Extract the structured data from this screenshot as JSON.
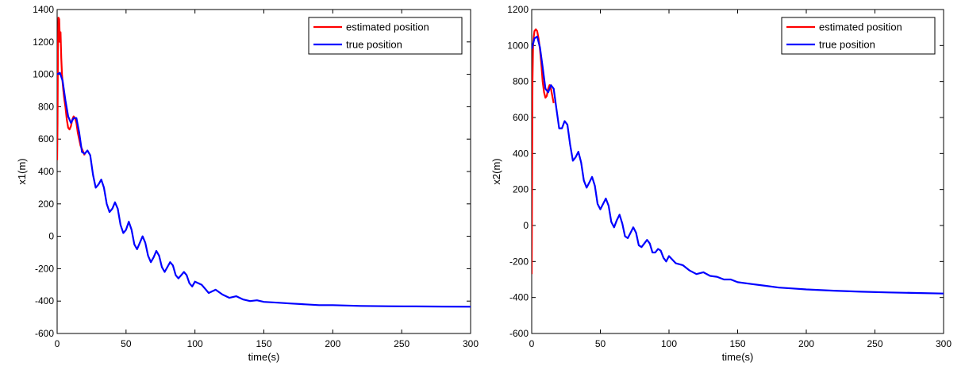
{
  "chart_data": [
    {
      "type": "line",
      "xlabel": "time(s)",
      "ylabel": "x1(m)",
      "xlim": [
        0,
        300
      ],
      "ylim": [
        -600,
        1400
      ],
      "xticks": [
        "0",
        "50",
        "100",
        "150",
        "200",
        "250",
        "300"
      ],
      "yticks": [
        "-600",
        "-400",
        "-200",
        "0",
        "200",
        "400",
        "600",
        "800",
        "1000",
        "1200",
        "1400"
      ],
      "grid": false,
      "legend": "top-right",
      "series": [
        {
          "name": "estimated position",
          "color": "#ff0000",
          "x": [
            0,
            0.3,
            0.6,
            1,
            1.5,
            2,
            2.5,
            3,
            3.5,
            4,
            4.5,
            5,
            6,
            7,
            8,
            9,
            10,
            11,
            12,
            13,
            14,
            15,
            17,
            20
          ],
          "y": [
            470,
            700,
            1150,
            1350,
            1340,
            1200,
            1260,
            1100,
            1000,
            950,
            900,
            860,
            800,
            720,
            670,
            660,
            680,
            720,
            740,
            730,
            700,
            640,
            560,
            500
          ]
        },
        {
          "name": "true position",
          "color": "#0000ff",
          "x": [
            0,
            2,
            4,
            6,
            8,
            10,
            12,
            14,
            16,
            18,
            20,
            22,
            24,
            26,
            28,
            30,
            32,
            34,
            36,
            38,
            40,
            42,
            44,
            46,
            48,
            50,
            52,
            54,
            56,
            58,
            60,
            62,
            64,
            66,
            68,
            70,
            72,
            74,
            76,
            78,
            80,
            82,
            84,
            86,
            88,
            90,
            92,
            94,
            96,
            98,
            100,
            105,
            110,
            115,
            120,
            125,
            130,
            135,
            140,
            145,
            150,
            160,
            170,
            180,
            190,
            200,
            220,
            240,
            260,
            280,
            300
          ],
          "y": [
            1000,
            1010,
            960,
            840,
            740,
            700,
            730,
            730,
            640,
            520,
            510,
            530,
            500,
            380,
            300,
            320,
            350,
            300,
            200,
            150,
            170,
            210,
            170,
            70,
            20,
            40,
            90,
            40,
            -50,
            -80,
            -40,
            0,
            -40,
            -120,
            -160,
            -130,
            -90,
            -120,
            -190,
            -220,
            -190,
            -160,
            -180,
            -240,
            -260,
            -240,
            -220,
            -240,
            -290,
            -310,
            -280,
            -300,
            -350,
            -330,
            -360,
            -380,
            -370,
            -390,
            -400,
            -395,
            -405,
            -410,
            -415,
            -420,
            -425,
            -425,
            -430,
            -432,
            -433,
            -434,
            -435
          ]
        }
      ]
    },
    {
      "type": "line",
      "xlabel": "time(s)",
      "ylabel": "x2(m)",
      "xlim": [
        0,
        300
      ],
      "ylim": [
        -600,
        1200
      ],
      "xticks": [
        "0",
        "50",
        "100",
        "150",
        "200",
        "250",
        "300"
      ],
      "yticks": [
        "-600",
        "-400",
        "-200",
        "0",
        "200",
        "400",
        "600",
        "800",
        "1000",
        "1200"
      ],
      "grid": false,
      "legend": "top-right",
      "series": [
        {
          "name": "estimated position",
          "color": "#ff0000",
          "x": [
            0,
            0.3,
            0.6,
            1,
            1.5,
            2,
            3,
            4,
            5,
            6,
            7,
            8,
            9,
            10,
            11,
            12,
            13,
            14,
            16
          ],
          "y": [
            -270,
            300,
            800,
            1000,
            1050,
            1080,
            1090,
            1080,
            1040,
            980,
            900,
            800,
            740,
            710,
            720,
            760,
            780,
            760,
            680
          ]
        },
        {
          "name": "true position",
          "color": "#0000ff",
          "x": [
            0,
            2,
            4,
            6,
            8,
            10,
            12,
            14,
            16,
            18,
            20,
            22,
            24,
            26,
            28,
            30,
            32,
            34,
            36,
            38,
            40,
            42,
            44,
            46,
            48,
            50,
            52,
            54,
            56,
            58,
            60,
            62,
            64,
            66,
            68,
            70,
            72,
            74,
            76,
            78,
            80,
            82,
            84,
            86,
            88,
            90,
            92,
            94,
            96,
            98,
            100,
            105,
            110,
            115,
            120,
            125,
            130,
            135,
            140,
            145,
            150,
            160,
            170,
            180,
            190,
            200,
            220,
            240,
            260,
            280,
            300
          ],
          "y": [
            980,
            1040,
            1050,
            990,
            880,
            760,
            740,
            780,
            760,
            650,
            540,
            540,
            580,
            560,
            450,
            360,
            380,
            410,
            350,
            250,
            210,
            240,
            270,
            220,
            120,
            90,
            120,
            150,
            110,
            20,
            -10,
            30,
            60,
            10,
            -60,
            -70,
            -40,
            -10,
            -40,
            -110,
            -120,
            -100,
            -80,
            -100,
            -150,
            -150,
            -130,
            -140,
            -180,
            -200,
            -170,
            -210,
            -220,
            -250,
            -270,
            -260,
            -280,
            -285,
            -300,
            -300,
            -315,
            -325,
            -335,
            -345,
            -350,
            -355,
            -362,
            -368,
            -372,
            -375,
            -378
          ]
        }
      ]
    }
  ]
}
